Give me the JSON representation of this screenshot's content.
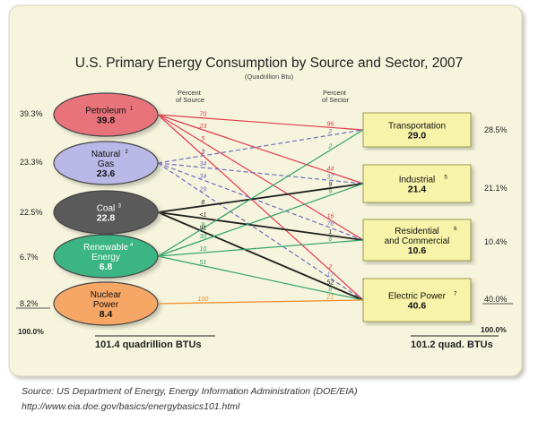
{
  "title": "U.S. Primary Energy Consumption by Source and Sector, 2007",
  "subtitle": "(Quadrillion Btu)",
  "column_headers": {
    "source": [
      "Percent",
      "of Source"
    ],
    "sector": [
      "Percent",
      "of Sector"
    ]
  },
  "colors": {
    "background": "#f6f4dc",
    "petroleum": "#e8737a",
    "natural_gas": "#b9b8e6",
    "coal": "#5a5a5a",
    "renewable": "#3bb583",
    "nuclear": "#f6a765",
    "sector_box": "#f7f3a8",
    "petroleum_line": "#e23a4d",
    "gas_line": "#6e6cc2",
    "coal_line": "#1e1e1e",
    "renewable_line": "#2ea367",
    "nuclear_line": "#f08a2a"
  },
  "sources": [
    {
      "id": "petroleum",
      "name_lines": [
        "Petroleum"
      ],
      "sup": "1",
      "value": "39.8",
      "share": "39.3%"
    },
    {
      "id": "natural_gas",
      "name_lines": [
        "Natural",
        "Gas"
      ],
      "sup": "2",
      "value": "23.6",
      "share": "23.3%"
    },
    {
      "id": "coal",
      "name_lines": [
        "Coal"
      ],
      "sup": "3",
      "value": "22.8",
      "share": "22.5%"
    },
    {
      "id": "renewable",
      "name_lines": [
        "Renewable",
        "Energy"
      ],
      "sup": "4",
      "value": "6.8",
      "share": "6.7%"
    },
    {
      "id": "nuclear",
      "name_lines": [
        "Nuclear",
        "Power"
      ],
      "sup": "",
      "value": "8.4",
      "share": "8.2%"
    }
  ],
  "sectors": [
    {
      "id": "transportation",
      "name_lines": [
        "Transportation"
      ],
      "sup": "",
      "value": "29.0",
      "share": "28.5%"
    },
    {
      "id": "industrial",
      "name_lines": [
        "Industrial"
      ],
      "sup": "5",
      "value": "21.4",
      "share": "21.1%"
    },
    {
      "id": "residential",
      "name_lines": [
        "Residential",
        "and Commercial"
      ],
      "sup": "6",
      "value": "10.6",
      "share": "10.4%"
    },
    {
      "id": "electric",
      "name_lines": [
        "Electric Power"
      ],
      "sup": "7",
      "value": "40.6",
      "share": "40.0%"
    }
  ],
  "flows": [
    {
      "source": "petroleum",
      "sector": "transportation",
      "src_pct": "70",
      "sec_pct": "96"
    },
    {
      "source": "petroleum",
      "sector": "industrial",
      "src_pct": "23",
      "sec_pct": "44"
    },
    {
      "source": "petroleum",
      "sector": "residential",
      "src_pct": "5",
      "sec_pct": "16"
    },
    {
      "source": "petroleum",
      "sector": "electric",
      "src_pct": "2",
      "sec_pct": "2"
    },
    {
      "source": "natural_gas",
      "sector": "transportation",
      "src_pct": "3",
      "sec_pct": "2"
    },
    {
      "source": "natural_gas",
      "sector": "industrial",
      "src_pct": "34",
      "sec_pct": "37"
    },
    {
      "source": "natural_gas",
      "sector": "residential",
      "src_pct": "34",
      "sec_pct": "76"
    },
    {
      "source": "natural_gas",
      "sector": "electric",
      "src_pct": "29",
      "sec_pct": "17"
    },
    {
      "source": "coal",
      "sector": "industrial",
      "src_pct": "8",
      "sec_pct": "9"
    },
    {
      "source": "coal",
      "sector": "residential",
      "src_pct": "<1",
      "sec_pct": "1"
    },
    {
      "source": "coal",
      "sector": "electric",
      "src_pct": "91",
      "sec_pct": "52"
    },
    {
      "source": "renewable",
      "sector": "transportation",
      "src_pct": "9",
      "sec_pct": "2"
    },
    {
      "source": "renewable",
      "sector": "industrial",
      "src_pct": "30",
      "sec_pct": "9"
    },
    {
      "source": "renewable",
      "sector": "residential",
      "src_pct": "10",
      "sec_pct": "6"
    },
    {
      "source": "renewable",
      "sector": "electric",
      "src_pct": "51",
      "sec_pct": "8"
    },
    {
      "source": "nuclear",
      "sector": "electric",
      "src_pct": "100",
      "sec_pct": "21"
    }
  ],
  "totals": {
    "left_pct": "100.0%",
    "right_pct": "100.0%",
    "source_total": "101.4 quadrillion BTUs",
    "sector_total": "101.2 quad. BTUs"
  },
  "source_note": {
    "line1": "Source: US Department of Energy, Energy Information Administration (DOE/EIA)",
    "line2": "http://www.eia.doe.gov/basics/energybasics101.html"
  }
}
